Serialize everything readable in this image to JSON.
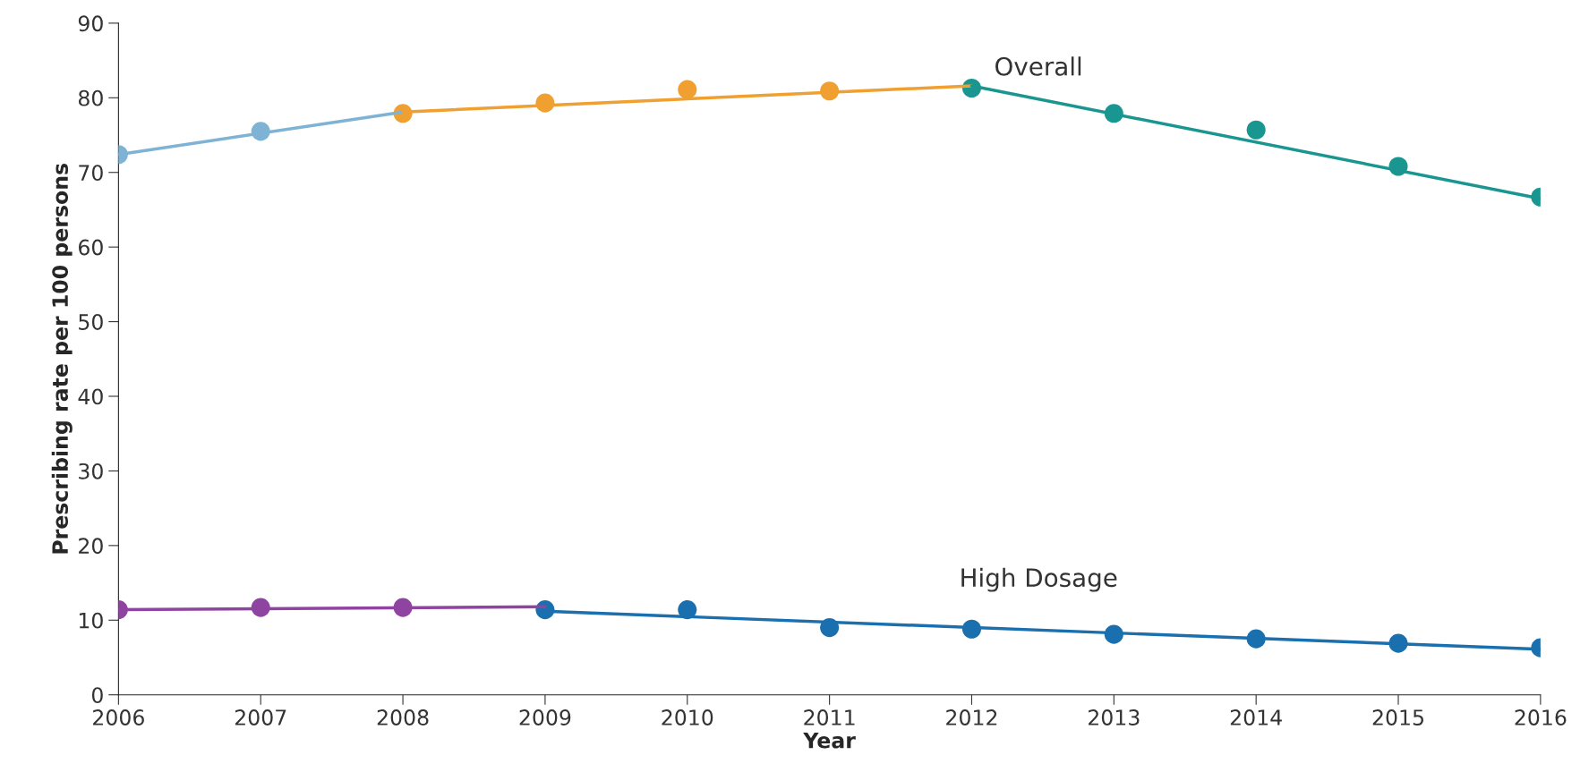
{
  "chart_data": {
    "type": "line",
    "xlabel": "Year",
    "ylabel": "Prescribing rate per 100 persons",
    "xlim": [
      2006,
      2016
    ],
    "xticks": [
      2006,
      2007,
      2008,
      2009,
      2010,
      2011,
      2012,
      2013,
      2014,
      2015,
      2016
    ],
    "ylim": [
      0,
      90
    ],
    "yticks": [
      0,
      10,
      20,
      30,
      40,
      50,
      60,
      70,
      80,
      90
    ],
    "grid": false,
    "legend": false,
    "series": [
      {
        "color": "#7fb3d5",
        "x": [
          2006,
          2008
        ],
        "values": [
          72.4,
          78.1
        ]
      },
      {
        "color": "#f0a030",
        "x": [
          2008,
          2012
        ],
        "values": [
          78.1,
          81.6
        ]
      },
      {
        "color": "#1a9690",
        "x": [
          2012,
          2016
        ],
        "values": [
          81.6,
          66.5
        ]
      },
      {
        "color": "#8e44a0",
        "x": [
          2006,
          2009
        ],
        "values": [
          11.4,
          11.8
        ]
      },
      {
        "color": "#1a6faf",
        "x": [
          2009,
          2016
        ],
        "values": [
          11.2,
          6.1
        ]
      },
      {
        "type": "scatter",
        "name": "Overall",
        "marker": "circle",
        "x": [
          2006,
          2007,
          2008,
          2009,
          2010,
          2011,
          2012,
          2013,
          2014,
          2015,
          2016
        ],
        "values": [
          72.4,
          75.5,
          77.9,
          79.3,
          81.1,
          80.9,
          81.3,
          77.9,
          75.7,
          70.8,
          66.7
        ],
        "colors": [
          "#7fb3d5",
          "#7fb3d5",
          "#f0a030",
          "#f0a030",
          "#f0a030",
          "#f0a030",
          "#1a9690",
          "#1a9690",
          "#1a9690",
          "#1a9690",
          "#1a9690"
        ]
      },
      {
        "type": "scatter",
        "name": "High Dosage",
        "marker": "circle",
        "x": [
          2006,
          2007,
          2008,
          2009,
          2010,
          2011,
          2012,
          2013,
          2014,
          2015,
          2016
        ],
        "values": [
          11.4,
          11.7,
          11.7,
          11.4,
          11.4,
          9.0,
          8.8,
          8.1,
          7.5,
          6.9,
          6.3
        ],
        "colors": [
          "#8e44a0",
          "#8e44a0",
          "#8e44a0",
          "#1a6faf",
          "#1a6faf",
          "#1a6faf",
          "#1a6faf",
          "#1a6faf",
          "#1a6faf",
          "#1a6faf",
          "#1a6faf"
        ]
      }
    ]
  }
}
